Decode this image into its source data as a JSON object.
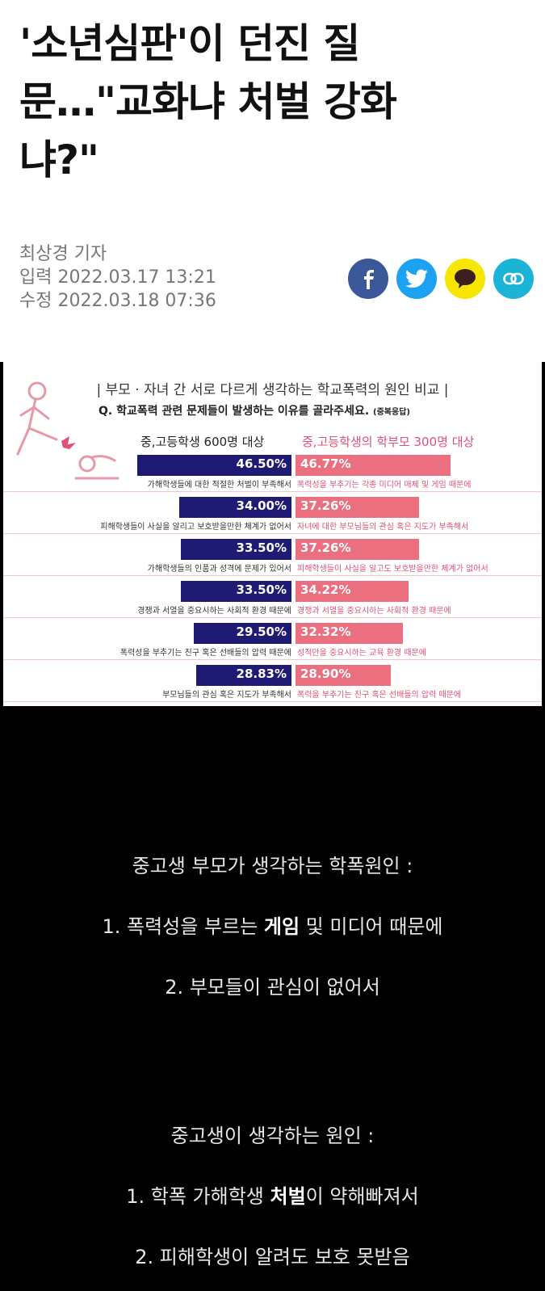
{
  "article": {
    "headline_lines": [
      "'소년심판'이 던진 질",
      "문…\"교화냐 처벌 강화",
      "냐?\""
    ],
    "reporter": "최상경 기자",
    "input_date": "입력 2022.03.17 13:21",
    "updated_date": "수정 2022.03.18 07:36",
    "share": [
      "facebook-icon",
      "twitter-icon",
      "kakao-icon",
      "link-icon"
    ]
  },
  "infographic": {
    "title": "| 부모 · 자녀 간 서로 다르게 생각하는 학교폭력의 원인 비교 |",
    "question": "Q. 학교폭력 관련 문제들이 발생하는 이유를 골라주세요.",
    "question_note": "(중복응답)",
    "left_header": "중,고등학생 600명 대상",
    "right_header": "중,고등학생의 학부모 300명 대상",
    "colors": {
      "students": "#1f1a74",
      "parents": "#ec6f80"
    },
    "rows": [
      {
        "left_value": "46.50%",
        "left_caption": "가해학생들에 대한 적절한 처벌이 부족해서",
        "right_value": "46.77%",
        "right_caption": "폭력성을 부추기는 각종 미디어 매체 및 게임 때문에"
      },
      {
        "left_value": "34.00%",
        "left_caption": "피해학생들이 사실을 알리고 보호받을만한 체계가 없어서",
        "right_value": "37.26%",
        "right_caption": "자녀에 대한 부모님들의 관심 혹은 지도가 부족해서"
      },
      {
        "left_value": "33.50%",
        "left_caption": "가해학생들의 인품과 성격에 문제가 있어서",
        "right_value": "37.26%",
        "right_caption": "피해학생들이 사실을 알고도 보호받을만한 체계가 없어서"
      },
      {
        "left_value": "33.50%",
        "left_caption": "경쟁과 서열을 중요시하는 사회적 환경 때문에",
        "right_value": "34.22%",
        "right_caption": "경쟁과 서열을 중요시하는 사회적 환경 때문에"
      },
      {
        "left_value": "29.50%",
        "left_caption": "폭력성을 부추기는 친구 혹은 선배들의 압력 때문에",
        "right_value": "32.32%",
        "right_caption": "성적만을 중요시하는 교육 환경 때문에"
      },
      {
        "left_value": "28.83%",
        "left_caption": "부모님들의 관심 혹은 지도가 부족해서",
        "right_value": "28.90%",
        "right_caption": "폭력을 부추기는 친구 혹은 선배들의 압력 때문에"
      }
    ]
  },
  "commentary": {
    "parents_heading": "중고생 부모가 생각하는 학폭원인 :",
    "parents_item1_pre": "1. 폭력성을 부르는 ",
    "parents_item1_bold": "게임",
    "parents_item1_post": " 및 미디어 때문에",
    "parents_item2": "2. 부모들이 관심이 없어서",
    "students_heading": "중고생이 생각하는 원인 :",
    "students_item1_pre": "1. 학폭 가해학생 ",
    "students_item1_bold": "처벌",
    "students_item1_post": "이 약해빠져서",
    "students_item2": "2. 피해학생이 알려도 보호 못받음"
  }
}
